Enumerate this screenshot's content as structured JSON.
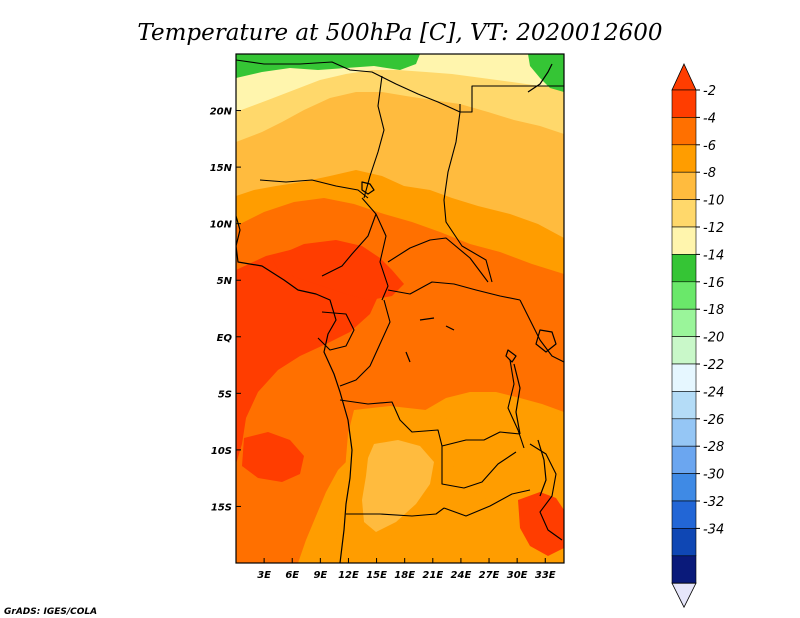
{
  "title": "Temperature at 500hPa [C], VT: 2020012600",
  "credit": "GrADS: IGES/COLA",
  "colors": {
    "frame": "#000000",
    "borders": "#000000",
    "background": "#ffffff"
  },
  "map": {
    "lon_range": [
      0,
      35
    ],
    "lat_range": [
      -20,
      25
    ],
    "lon_ticks": [
      {
        "value": 3,
        "label": "3E"
      },
      {
        "value": 6,
        "label": "6E"
      },
      {
        "value": 9,
        "label": "9E"
      },
      {
        "value": 12,
        "label": "12E"
      },
      {
        "value": 15,
        "label": "15E"
      },
      {
        "value": 18,
        "label": "18E"
      },
      {
        "value": 21,
        "label": "21E"
      },
      {
        "value": 24,
        "label": "24E"
      },
      {
        "value": 27,
        "label": "27E"
      },
      {
        "value": 30,
        "label": "30E"
      },
      {
        "value": 33,
        "label": "33E"
      }
    ],
    "lat_ticks": [
      {
        "value": 20,
        "label": "20N"
      },
      {
        "value": 15,
        "label": "15N"
      },
      {
        "value": 10,
        "label": "10N"
      },
      {
        "value": 5,
        "label": "5N"
      },
      {
        "value": 0,
        "label": "EQ"
      },
      {
        "value": -5,
        "label": "5S"
      },
      {
        "value": -10,
        "label": "10S"
      },
      {
        "value": -15,
        "label": "15S"
      }
    ]
  },
  "colorbar": {
    "levels": [
      {
        "label": "-2",
        "color": "#ff3d00"
      },
      {
        "label": "-4",
        "color": "#ff7000"
      },
      {
        "label": "-6",
        "color": "#ff9d00"
      },
      {
        "label": "-8",
        "color": "#ffbb3e"
      },
      {
        "label": "-10",
        "color": "#ffd86b"
      },
      {
        "label": "-12",
        "color": "#fff5ad"
      },
      {
        "label": "-14",
        "color": "#35c535"
      },
      {
        "label": "-16",
        "color": "#6ae86a"
      },
      {
        "label": "-18",
        "color": "#9af59a"
      },
      {
        "label": "-20",
        "color": "#c9f8c9"
      },
      {
        "label": "-22",
        "color": "#e6f7ff"
      },
      {
        "label": "-24",
        "color": "#b4dcf7"
      },
      {
        "label": "-26",
        "color": "#95c6f5"
      },
      {
        "label": "-28",
        "color": "#6ba6f0"
      },
      {
        "label": "-30",
        "color": "#3f8ae5"
      },
      {
        "label": "-32",
        "color": "#2266d6"
      },
      {
        "label": "-34",
        "color": "#0f47b4"
      }
    ],
    "upper_arrow_color": "#ff3d00",
    "bottom_box_color": "#0a1a7a",
    "lower_arrow_color": "#e6e6fa"
  }
}
